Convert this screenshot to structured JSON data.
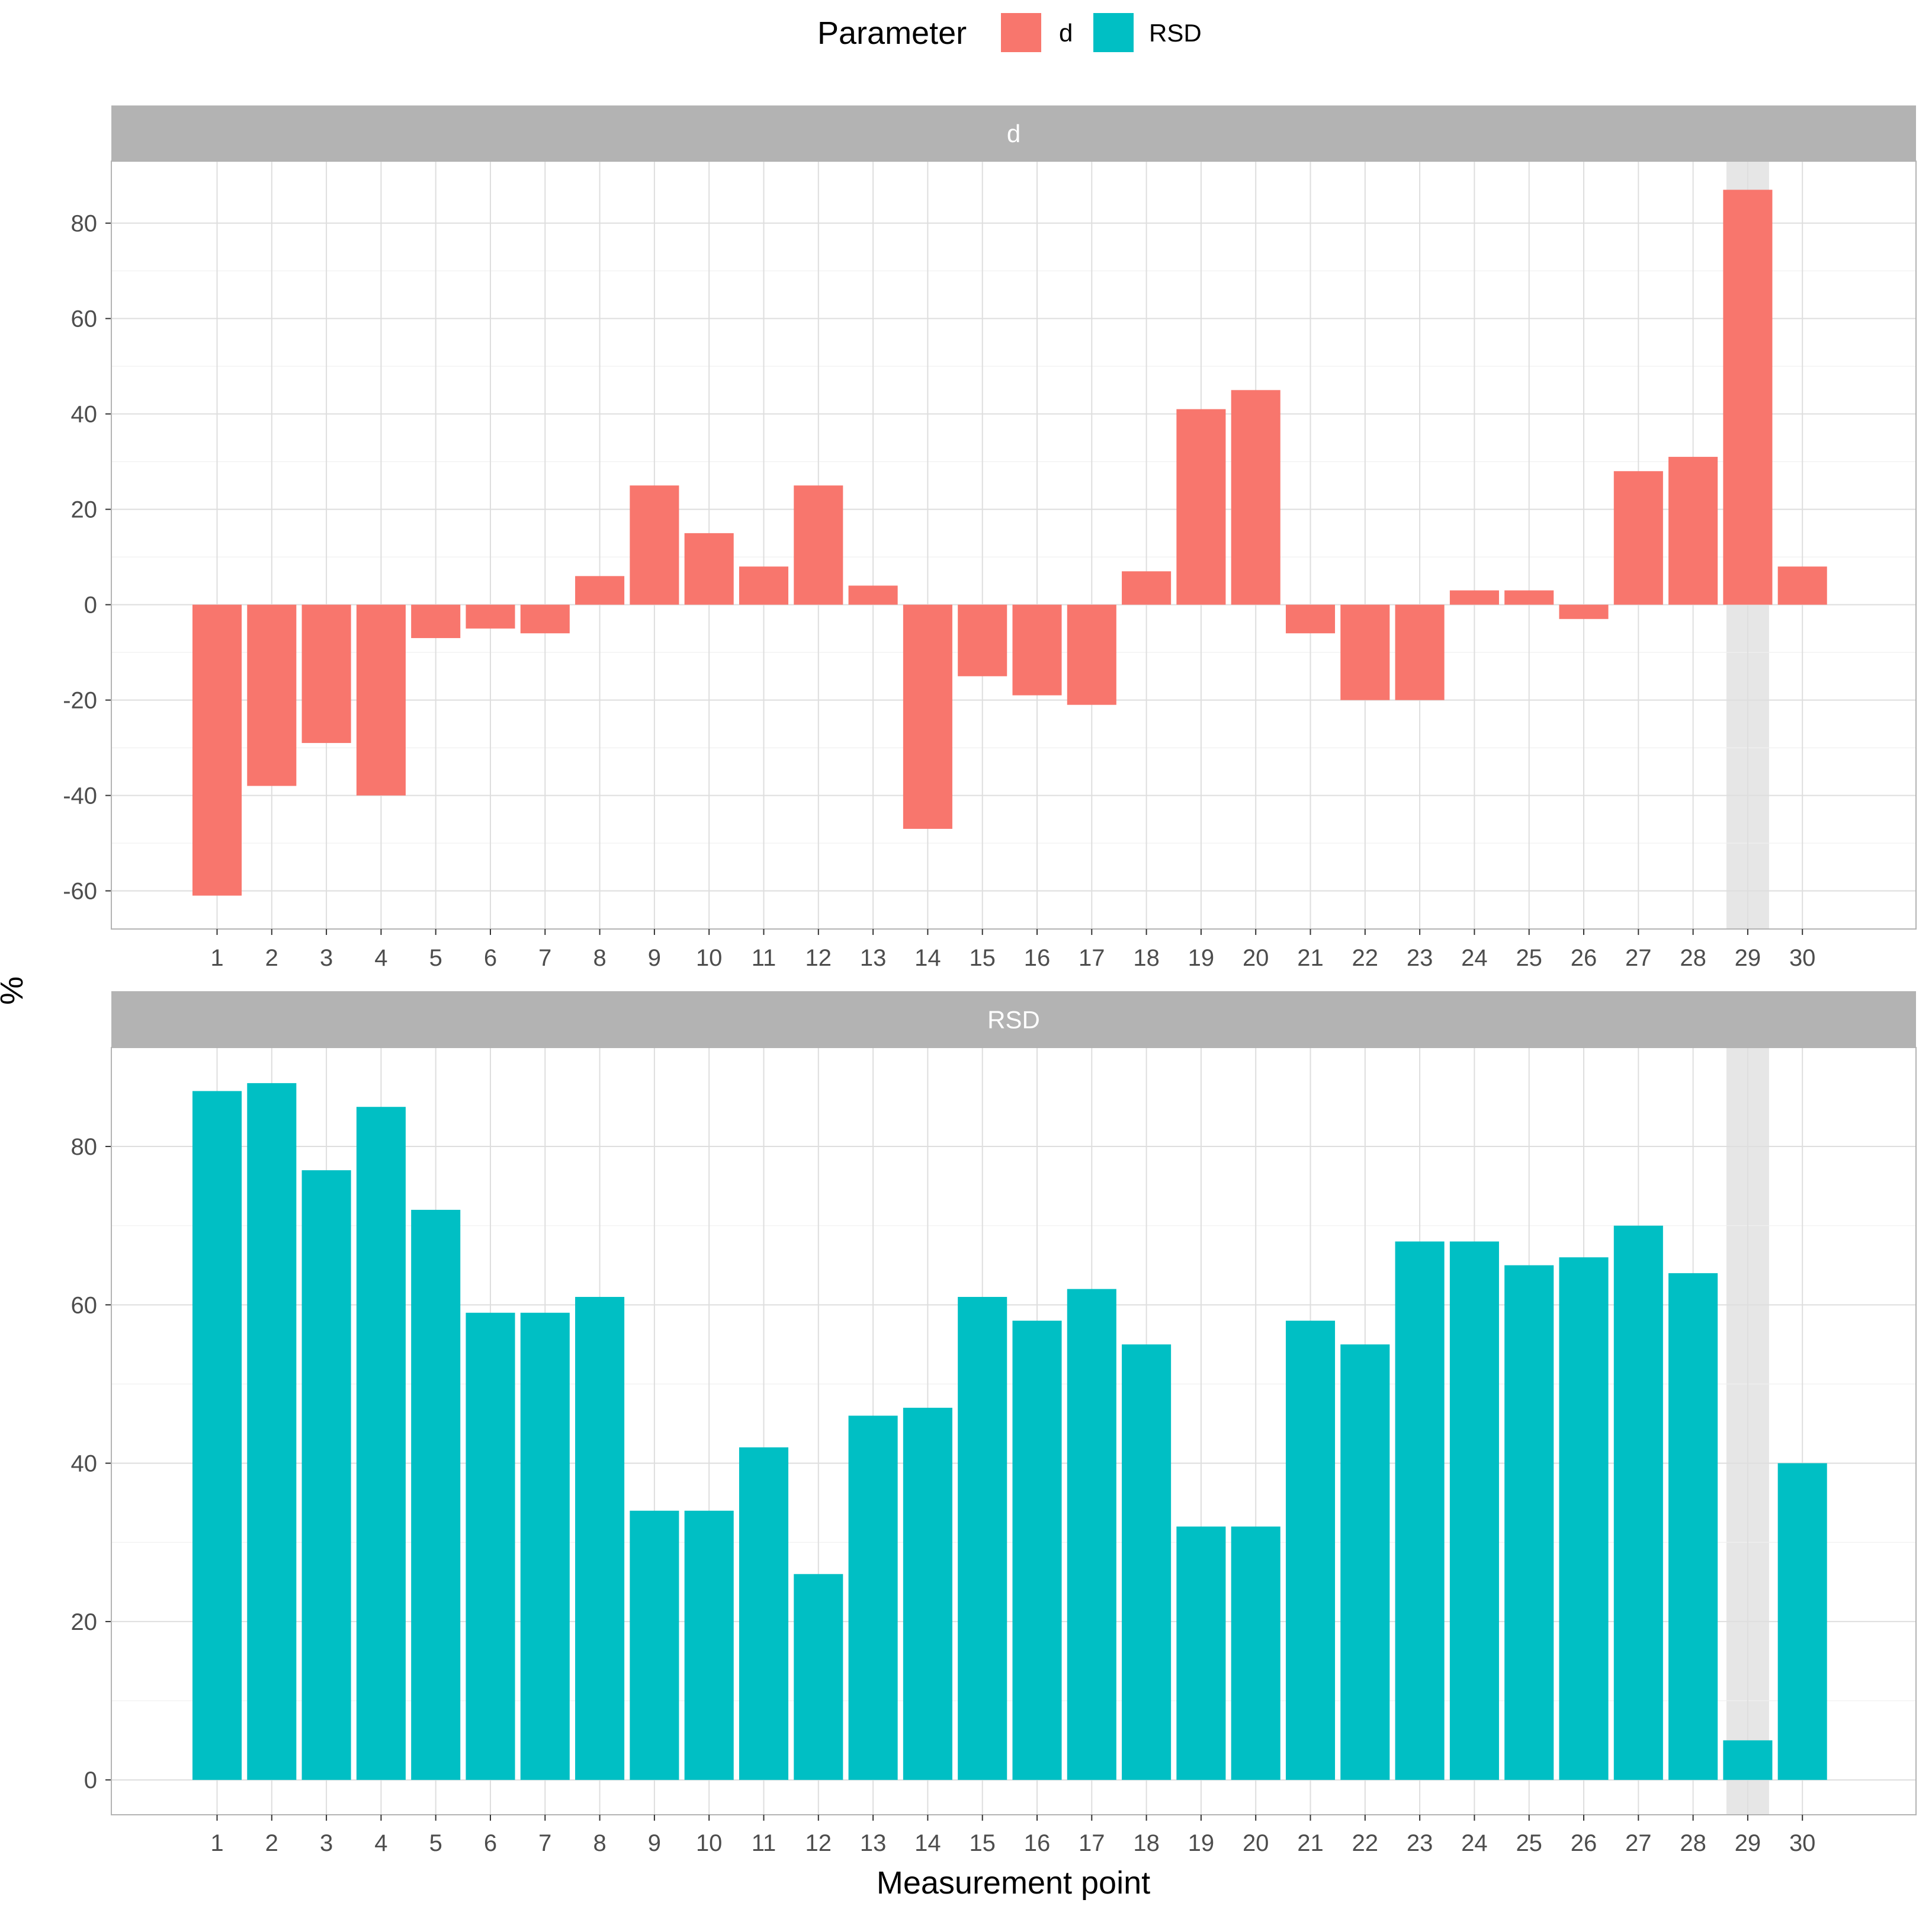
{
  "chart_data": {
    "type": "bar",
    "xlabel": "Measurement point",
    "ylabel": "%",
    "categories": [
      "1",
      "2",
      "3",
      "4",
      "5",
      "6",
      "7",
      "8",
      "9",
      "10",
      "11",
      "12",
      "13",
      "14",
      "15",
      "16",
      "17",
      "18",
      "19",
      "20",
      "21",
      "22",
      "23",
      "24",
      "25",
      "26",
      "27",
      "28",
      "29",
      "30"
    ],
    "highlighted_category": "29",
    "grid": true,
    "legend": {
      "title": "Parameter",
      "placement": "top",
      "entries": [
        {
          "label": "d",
          "color": "#F8766D"
        },
        {
          "label": "RSD",
          "color": "#00BFC4"
        }
      ]
    },
    "panels": [
      {
        "strip_label": "d",
        "series_name": "d",
        "color": "#F8766D",
        "values": [
          -61,
          -38,
          -29,
          -40,
          -7,
          -5,
          -6,
          6,
          25,
          15,
          8,
          25,
          4,
          -47,
          -15,
          -19,
          -21,
          7,
          41,
          45,
          -6,
          -20,
          -20,
          3,
          3,
          -3,
          28,
          31,
          87,
          8
        ],
        "ylim": [
          -68,
          93
        ],
        "yticks": [
          -60,
          -40,
          -20,
          0,
          20,
          40,
          60,
          80
        ],
        "ytick_labels": [
          "-60",
          "-40",
          "-20",
          "0",
          "20",
          "40",
          "60",
          "80"
        ]
      },
      {
        "strip_label": "RSD",
        "series_name": "RSD",
        "color": "#00BFC4",
        "values": [
          87,
          88,
          77,
          85,
          72,
          59,
          59,
          61,
          34,
          34,
          42,
          26,
          46,
          47,
          61,
          58,
          62,
          55,
          32,
          32,
          58,
          55,
          68,
          68,
          65,
          66,
          70,
          64,
          5,
          40
        ],
        "ylim": [
          -4.4,
          92.5
        ],
        "yticks": [
          0,
          20,
          40,
          60,
          80
        ],
        "ytick_labels": [
          "0",
          "20",
          "40",
          "60",
          "80"
        ]
      }
    ]
  }
}
